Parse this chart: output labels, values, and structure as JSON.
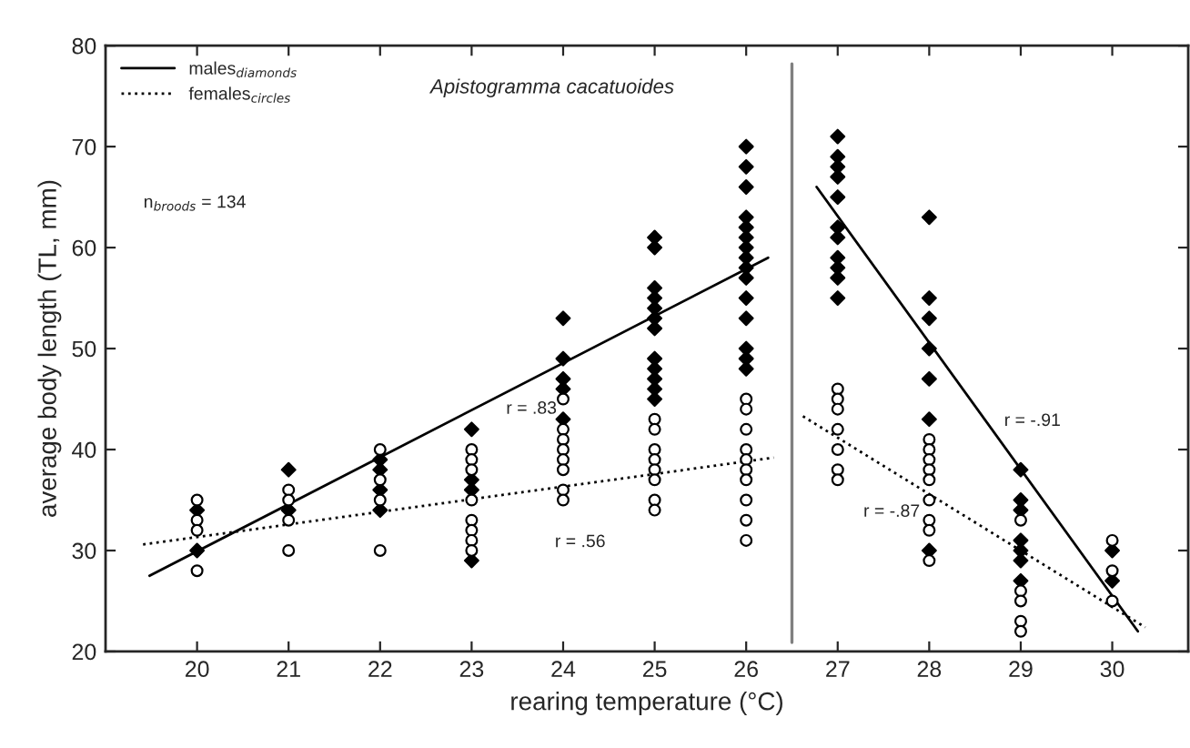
{
  "chart_data": {
    "type": "scatter",
    "xlabel": "rearing temperature (°C)",
    "ylabel": "average body length (TL, mm)",
    "xlim": [
      19,
      30.83
    ],
    "ylim": [
      20,
      80
    ],
    "xticks": [
      20,
      21,
      22,
      23,
      24,
      25,
      26,
      27,
      28,
      29,
      30
    ],
    "yticks": [
      20,
      30,
      40,
      50,
      60,
      70,
      80
    ],
    "grid": false,
    "legend": "top left",
    "series": [
      {
        "marker": "diamond",
        "color": "#000000",
        "x": [
          20,
          20,
          21,
          21,
          22,
          22,
          22,
          22,
          23,
          23,
          23,
          23,
          24,
          24,
          24,
          24,
          24,
          25,
          25,
          25,
          25,
          25,
          25,
          25,
          25,
          25,
          25,
          25,
          25,
          26,
          26,
          26,
          26,
          26,
          26,
          26,
          26,
          26,
          26,
          26,
          26,
          26,
          26,
          26,
          27,
          27,
          27,
          27,
          27,
          27,
          27,
          27,
          27,
          27,
          27,
          28,
          28,
          28,
          28,
          28,
          28,
          28,
          29,
          29,
          29,
          29,
          29,
          29,
          29,
          30,
          30
        ],
        "values": [
          34,
          30,
          38,
          34,
          39,
          38,
          36,
          34,
          42,
          37,
          36,
          29,
          53,
          49,
          47,
          46,
          43,
          61,
          60,
          56,
          55,
          54,
          53,
          52,
          49,
          48,
          47,
          46,
          45,
          70,
          68,
          66,
          63,
          62,
          61,
          60,
          59,
          58,
          57,
          55,
          53,
          50,
          49,
          48,
          71,
          69,
          68,
          67,
          65,
          62,
          61,
          59,
          58,
          57,
          55,
          63,
          55,
          53,
          50,
          47,
          43,
          30,
          38,
          35,
          34,
          31,
          30,
          29,
          27,
          30,
          27
        ]
      },
      {
        "marker": "circle",
        "color": "#000000",
        "x": [
          20,
          20,
          20,
          20,
          21,
          21,
          21,
          21,
          22,
          22,
          22,
          22,
          23,
          23,
          23,
          23,
          23,
          23,
          23,
          23,
          24,
          24,
          24,
          24,
          24,
          24,
          24,
          24,
          25,
          25,
          25,
          25,
          25,
          25,
          25,
          25,
          26,
          26,
          26,
          26,
          26,
          26,
          26,
          26,
          26,
          26,
          27,
          27,
          27,
          27,
          27,
          27,
          27,
          28,
          28,
          28,
          28,
          28,
          28,
          28,
          28,
          28,
          29,
          29,
          29,
          29,
          29,
          30,
          30,
          30
        ],
        "values": [
          35,
          33,
          32,
          28,
          36,
          35,
          33,
          30,
          40,
          37,
          35,
          30,
          40,
          39,
          38,
          35,
          33,
          32,
          31,
          30,
          45,
          42,
          41,
          40,
          39,
          38,
          36,
          35,
          43,
          42,
          40,
          39,
          38,
          37,
          35,
          34,
          45,
          44,
          42,
          40,
          39,
          38,
          37,
          35,
          33,
          31,
          46,
          45,
          44,
          42,
          40,
          38,
          37,
          41,
          40,
          39,
          38,
          37,
          35,
          33,
          32,
          29,
          33,
          26,
          25,
          23,
          22,
          31,
          28,
          25
        ]
      },
      {
        "type": "line",
        "name": "males$_{diamonds}$",
        "line_style": "solid",
        "color": "#000000",
        "x": [
          19.48,
          26.24
        ],
        "values": [
          27.5,
          59.0
        ]
      },
      {
        "type": "line",
        "name": "females$_{circles}$",
        "line_style": "dotted",
        "color": "#000000",
        "x": [
          19.41,
          26.3
        ],
        "values": [
          30.6,
          39.2
        ]
      },
      {
        "type": "line",
        "line_style": "solid",
        "color": "#000000",
        "x": [
          26.77,
          30.28
        ],
        "values": [
          66.0,
          22.0
        ]
      },
      {
        "type": "line",
        "line_style": "dotted",
        "color": "#000000",
        "x": [
          26.62,
          30.36
        ],
        "values": [
          43.3,
          22.4
        ]
      }
    ],
    "ref_lines": [
      {
        "axis": "x",
        "value": 26.5,
        "color": "#808080"
      }
    ],
    "annotations": [
      "Apistogramma cacatuoides",
      "n$_{broods}$ = 134",
      "r = .83",
      "r = .56",
      "r = -.91",
      "r = -.87"
    ]
  }
}
